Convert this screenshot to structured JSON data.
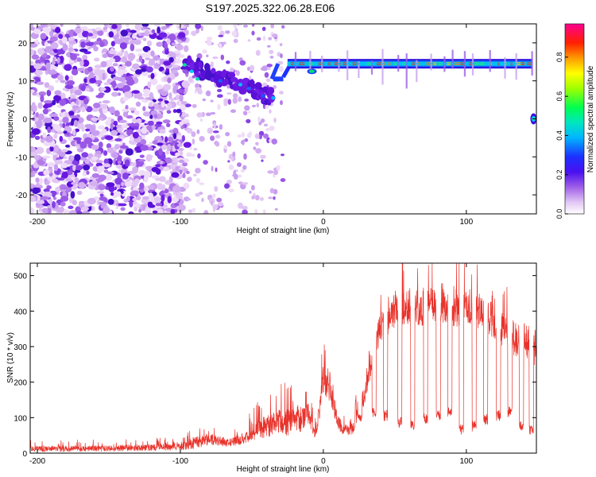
{
  "title": "S197.2025.322.06.28.E06",
  "chart_data": [
    {
      "type": "heatmap",
      "name": "spectrogram",
      "xlabel": "Height of straight line (km)",
      "ylabel": "Frequency (Hz)",
      "xlim": [
        -205,
        149
      ],
      "ylim": [
        -25,
        25
      ],
      "xticks": [
        -200,
        -100,
        0,
        100
      ],
      "xtick_labels": [
        "-200",
        "-100",
        "0",
        "100"
      ],
      "yticks": [
        20,
        10,
        0,
        -10,
        -20
      ],
      "ytick_labels": [
        "20",
        "10",
        "0",
        "-10",
        "-20"
      ],
      "colorbar": {
        "label": "Normalized spectral amplitude",
        "range": [
          0,
          0.97
        ],
        "ticks": [
          0.0,
          0.2,
          0.4,
          0.6,
          0.8
        ],
        "tick_labels": [
          "0.0",
          "0.2",
          "0.4",
          "0.6",
          "0.8"
        ],
        "colors": [
          "#ffffff",
          "#e6c8f5",
          "#b87ce8",
          "#6a10e8",
          "#2020ff",
          "#00c8ff",
          "#00ff60",
          "#ffff00",
          "#ff8000",
          "#ff0000",
          "#ff0080"
        ]
      },
      "features": {
        "noise_extent_x": [
          -205,
          -95
        ],
        "sparse_noise_x": [
          -95,
          -28
        ],
        "descending_track": [
          [
            -97,
            14.5
          ],
          [
            -88,
            13.5
          ],
          [
            -80,
            11.5
          ],
          [
            -70,
            10.5
          ],
          [
            -60,
            9.5
          ],
          [
            -50,
            8
          ],
          [
            -42,
            6.5
          ],
          [
            -35,
            5.5
          ]
        ],
        "track_step": [
          [
            -35,
            10.5
          ],
          [
            -28,
            11
          ]
        ],
        "steady_tone": {
          "x": [
            -25,
            146
          ],
          "frequency": 14.5
        },
        "dc_blob": {
          "x": 147,
          "frequency": 0
        }
      }
    },
    {
      "type": "line",
      "name": "snr",
      "xlabel": "Height of straight line (km)",
      "ylabel": "SNR (10 * v/v)",
      "xlim": [
        -205,
        149
      ],
      "ylim": [
        0,
        535
      ],
      "xticks": [
        -200,
        -100,
        0,
        100
      ],
      "xtick_labels": [
        "-200",
        "-100",
        "0",
        "100"
      ],
      "yticks": [
        0,
        100,
        200,
        300,
        400,
        500
      ],
      "ytick_labels": [
        "0",
        "100",
        "200",
        "300",
        "400",
        "500"
      ],
      "color": "#e8322a",
      "x_knots": [
        -205,
        -150,
        -100,
        -90,
        -80,
        -65,
        -55,
        -45,
        -30,
        -20,
        -10,
        -5,
        0,
        5,
        10,
        15,
        20,
        25,
        30,
        35,
        40,
        50,
        60,
        70,
        80,
        90,
        100,
        110,
        120,
        130,
        140,
        149
      ],
      "baseline_knots": [
        12,
        14,
        18,
        30,
        40,
        30,
        45,
        70,
        90,
        95,
        110,
        55,
        210,
        175,
        90,
        60,
        70,
        110,
        200,
        280,
        360,
        410,
        420,
        410,
        430,
        400,
        420,
        400,
        370,
        330,
        320,
        300
      ],
      "spread_knots": [
        18,
        18,
        20,
        35,
        35,
        25,
        35,
        60,
        80,
        90,
        70,
        40,
        90,
        70,
        40,
        30,
        40,
        60,
        80,
        90,
        100,
        110,
        110,
        110,
        110,
        110,
        110,
        110,
        110,
        110,
        110,
        110
      ],
      "dropouts": [
        [
          15,
          18,
          60
        ],
        [
          24,
          27,
          90
        ],
        [
          34,
          37,
          110
        ],
        [
          42,
          45,
          100
        ],
        [
          52,
          55,
          80
        ],
        [
          61,
          64,
          75
        ],
        [
          70,
          73,
          90
        ],
        [
          79,
          82,
          100
        ],
        [
          87,
          90,
          110
        ],
        [
          95,
          98,
          60
        ],
        [
          104,
          107,
          70
        ],
        [
          112,
          115,
          90
        ],
        [
          121,
          124,
          100
        ],
        [
          129,
          132,
          110
        ],
        [
          137,
          140,
          70
        ],
        [
          144,
          147,
          60
        ]
      ]
    }
  ]
}
